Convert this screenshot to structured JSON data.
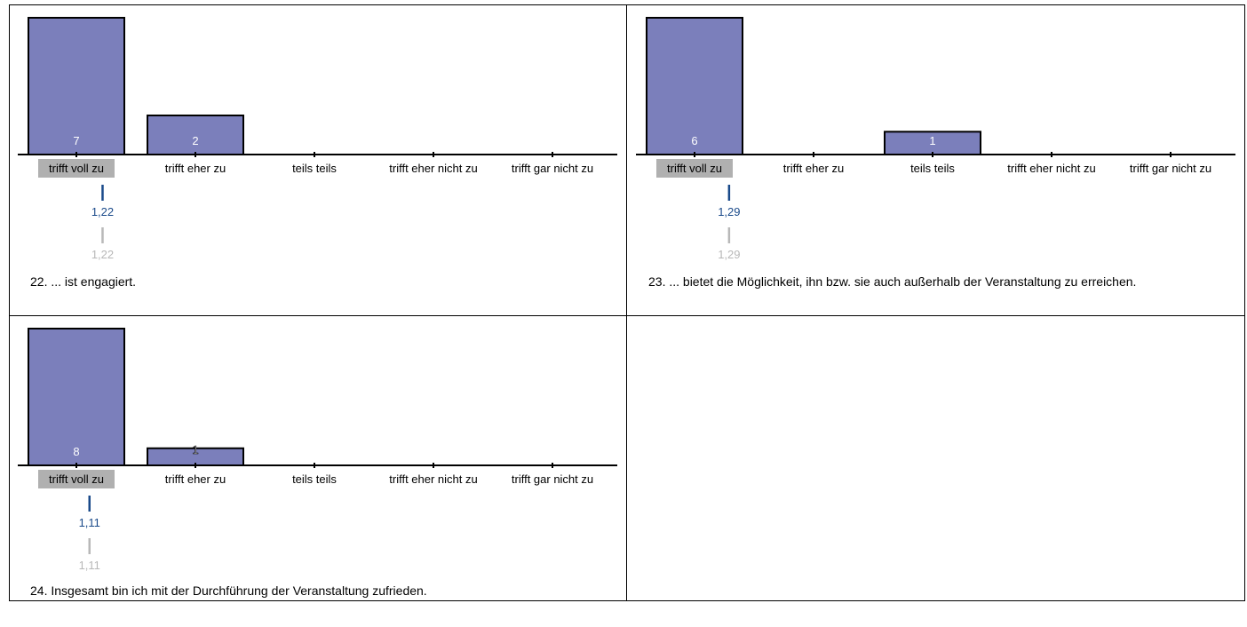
{
  "colors": {
    "bar": "#7b7fbb",
    "bar_stroke": "#000000",
    "mean_primary": "#1a4a8a",
    "mean_secondary": "#b8b8b8",
    "mode_highlight": "#b0b0b0"
  },
  "chart_data": [
    {
      "type": "bar",
      "categories": [
        "trifft voll zu",
        "trifft eher zu",
        "teils teils",
        "trifft eher nicht zu",
        "trifft gar nicht zu"
      ],
      "values": [
        7,
        2,
        0,
        0,
        0
      ],
      "value_labels": [
        "7",
        "2",
        "",
        "",
        ""
      ],
      "highlight_category": 0,
      "mean_primary": "1,22",
      "mean_secondary": "1,22",
      "mean_value": 1.22,
      "title": "22. ... ist engagiert."
    },
    {
      "type": "bar",
      "categories": [
        "trifft voll zu",
        "trifft eher zu",
        "teils teils",
        "trifft eher nicht zu",
        "trifft gar nicht zu"
      ],
      "values": [
        6,
        0,
        1,
        0,
        0
      ],
      "value_labels": [
        "6",
        "",
        "1",
        "",
        ""
      ],
      "highlight_category": 0,
      "mean_primary": "1,29",
      "mean_secondary": "1,29",
      "mean_value": 1.29,
      "title": "23. ... bietet die Möglichkeit, ihn bzw. sie auch außerhalb der Veranstaltung zu erreichen."
    },
    {
      "type": "bar",
      "categories": [
        "trifft voll zu",
        "trifft eher zu",
        "teils teils",
        "trifft eher nicht zu",
        "trifft gar nicht zu"
      ],
      "values": [
        8,
        1,
        0,
        0,
        0
      ],
      "value_labels": [
        "8",
        "1",
        "",
        "",
        ""
      ],
      "highlight_category": 0,
      "mean_primary": "1,11",
      "mean_secondary": "1,11",
      "mean_value": 1.11,
      "title": "24. Insgesamt bin ich mit der Durchführung der Veranstaltung zufrieden."
    }
  ]
}
